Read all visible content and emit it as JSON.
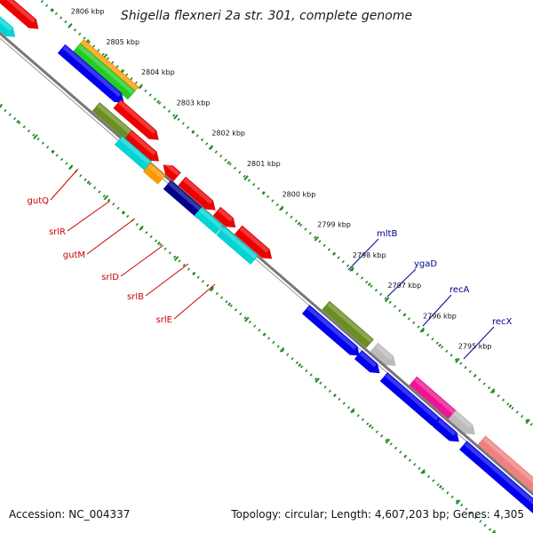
{
  "map": {
    "title": "Shigella flexneri 2a str. 301, complete genome",
    "ticks": [
      {
        "label": "2806 kbp",
        "kbp": 2806
      },
      {
        "label": "2805 kbp",
        "kbp": 2805
      },
      {
        "label": "2804 kbp",
        "kbp": 2804
      },
      {
        "label": "2803 kbp",
        "kbp": 2803
      },
      {
        "label": "2802 kbp",
        "kbp": 2802
      },
      {
        "label": "2801 kbp",
        "kbp": 2801
      },
      {
        "label": "2800 kbp",
        "kbp": 2800
      },
      {
        "label": "2799 kbp",
        "kbp": 2799
      },
      {
        "label": "2798 kbp",
        "kbp": 2798
      },
      {
        "label": "2797 kbp",
        "kbp": 2797
      },
      {
        "label": "2796 kbp",
        "kbp": 2796
      },
      {
        "label": "2795 kbp",
        "kbp": 2795
      }
    ],
    "gene_labels": [
      {
        "name": "gutQ",
        "color": "#cc0000"
      },
      {
        "name": "srlR",
        "color": "#cc0000"
      },
      {
        "name": "gutM",
        "color": "#cc0000"
      },
      {
        "name": "srlD",
        "color": "#cc0000"
      },
      {
        "name": "srlB",
        "color": "#cc0000"
      },
      {
        "name": "srlE",
        "color": "#cc0000"
      },
      {
        "name": "mltB",
        "color": "#00008b"
      },
      {
        "name": "ygaD",
        "color": "#00008b"
      },
      {
        "name": "recA",
        "color": "#00008b"
      },
      {
        "name": "recX",
        "color": "#00008b"
      }
    ],
    "colors": {
      "red": "#ee0000",
      "olive": "#6b8e23",
      "cyan": "#00d5d5",
      "orange": "#ff9900",
      "navy": "#00008b",
      "blue": "#0000ee",
      "gray": "#bbbbbb",
      "magenta": "#ee1493",
      "salmon": "#f08080",
      "green": "#22cc22",
      "backbone": "#777777",
      "tick_green": "#228b22"
    }
  },
  "footer": {
    "accession": "Accession: NC_004337",
    "summary": "Topology: circular; Length: 4,607,203 bp; Genes: 4,305"
  }
}
